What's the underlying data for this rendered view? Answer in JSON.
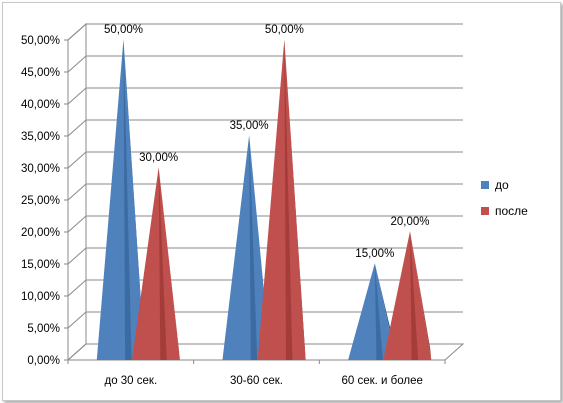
{
  "chart_data": {
    "type": "bar",
    "style": "3d-pyramid",
    "categories": [
      "до 30 сек.",
      "30-60 сек.",
      "60 сек. и более"
    ],
    "series": [
      {
        "name": "до",
        "color": "#4F81BD",
        "shade": "#2E5A8C",
        "values": [
          50,
          35,
          15
        ],
        "labels": [
          "50,00%",
          "35,00%",
          "15,00%"
        ]
      },
      {
        "name": "после",
        "color": "#C0504D",
        "shade": "#8C2E2B",
        "values": [
          30,
          50,
          20
        ],
        "labels": [
          "30,00%",
          "50,00%",
          "20,00%"
        ]
      }
    ],
    "ylim": [
      0,
      50
    ],
    "yticks": [
      "0,00%",
      "5,00%",
      "10,00%",
      "15,00%",
      "20,00%",
      "25,00%",
      "30,00%",
      "35,00%",
      "40,00%",
      "45,00%",
      "50,00%"
    ],
    "grid": true,
    "legend": "right"
  }
}
